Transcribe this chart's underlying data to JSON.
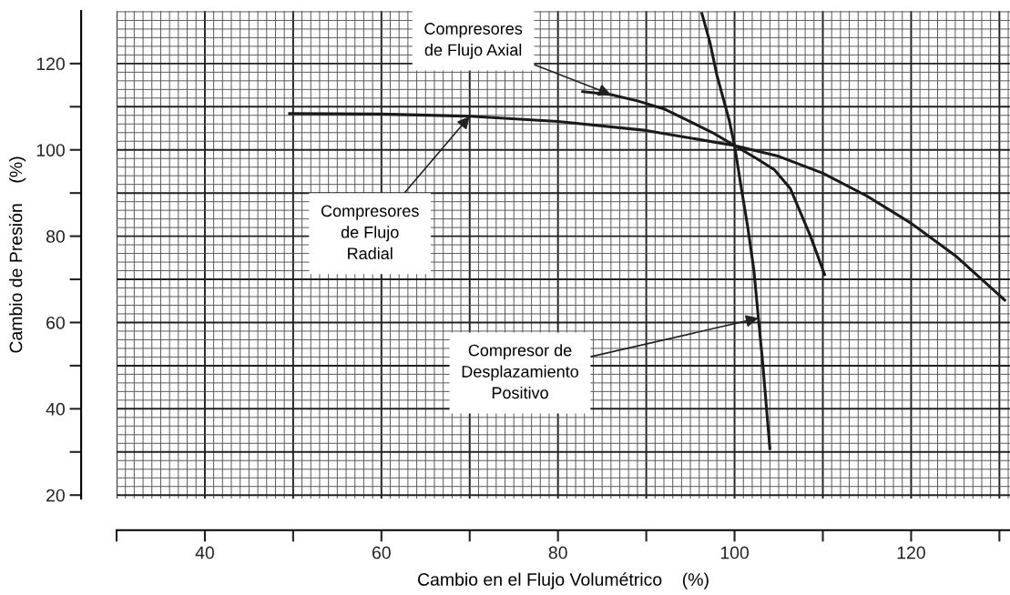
{
  "chart_data": {
    "type": "line",
    "xlabel": "Cambio en el Flujo Volumétrico    (%)",
    "ylabel": "Cambio de Presión    (%)",
    "xlim": [
      30,
      131.2
    ],
    "ylim": [
      19.2,
      132.2
    ],
    "xticks": [
      {
        "value": 30,
        "label": null
      },
      40,
      {
        "value": 50,
        "label": null
      },
      60,
      {
        "value": 70,
        "label": null
      },
      80,
      {
        "value": 90,
        "label": null
      },
      100,
      {
        "value": 110,
        "label": null
      },
      120,
      {
        "value": 130,
        "label": null
      }
    ],
    "yticks": [
      20,
      {
        "value": 30,
        "label": null
      },
      40,
      {
        "value": 50,
        "label": null
      },
      60,
      {
        "value": 70,
        "label": null
      },
      80,
      {
        "value": 90,
        "label": null
      },
      100,
      {
        "value": 110,
        "label": null
      },
      120
    ],
    "grid": true,
    "marker": "none",
    "line_style": "solid",
    "series": [
      {
        "color": "#1a1a1a",
        "x": [
          49.6,
          60,
          70,
          80,
          90,
          100,
          105,
          110,
          115,
          120,
          125,
          130.6
        ],
        "values": [
          108.4,
          108.3,
          107.8,
          106.6,
          104.5,
          101,
          98.5,
          94.6,
          89.3,
          83,
          75.5,
          65.2
        ]
      },
      {
        "color": "#1a1a1a",
        "x": [
          82.8,
          86,
          89.1,
          92,
          94.7,
          97.5,
          100,
          102.5,
          104.5,
          106.3,
          108.6,
          110.2
        ],
        "values": [
          113.5,
          112.8,
          111.3,
          109.5,
          106.8,
          104,
          101,
          98,
          95.4,
          91.1,
          80,
          71.1
        ]
      },
      {
        "color": "#1a1a1a",
        "x": [
          96.3,
          97.2,
          98,
          99.4,
          100,
          100.7,
          101.5,
          102.2,
          102.7,
          103.2,
          104
        ],
        "values": [
          131.6,
          125,
          117.3,
          106.8,
          101,
          92,
          82,
          72,
          61,
          50.4,
          30.8
        ]
      }
    ],
    "annotations": [
      {
        "text": "Compresores\nde Flujo Axial",
        "x": 86,
        "y": 112.8
      },
      {
        "text": "Compresores\nde Flujo\nRadial",
        "x": 70,
        "y": 107.8
      },
      {
        "text": "Compresor de\nDesplazamiento\nPositivo",
        "x": 102.7,
        "y": 61
      }
    ]
  }
}
